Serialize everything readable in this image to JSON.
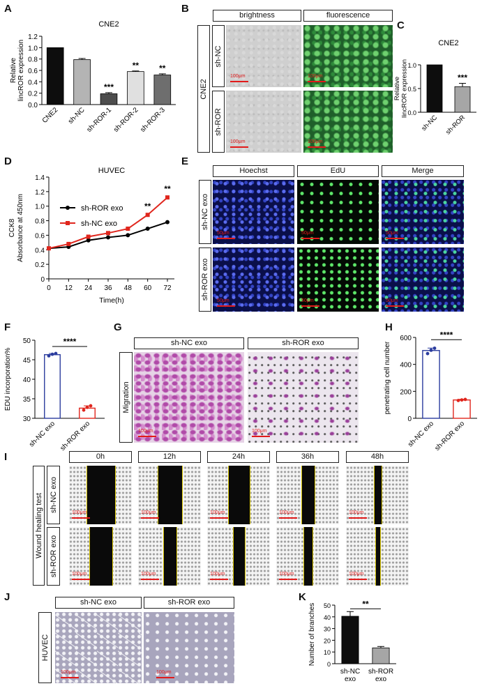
{
  "panels": {
    "A": "A",
    "B": "B",
    "C": "C",
    "D": "D",
    "E": "E",
    "F": "F",
    "G": "G",
    "H": "H",
    "I": "I",
    "J": "J",
    "K": "K"
  },
  "panelB": {
    "headers": [
      "brightness",
      "fluorescence"
    ],
    "group": "CNE2",
    "rows": [
      "sh-NC",
      "sh-ROR"
    ],
    "scale": "100μm"
  },
  "panelE": {
    "headers": [
      "Hoechst",
      "EdU",
      "Merge"
    ],
    "rows": [
      "sh-NC exo",
      "sh-ROR exo"
    ],
    "scale": "50μm"
  },
  "panelG": {
    "headers": [
      "sh-NC exo",
      "sh-ROR exo"
    ],
    "row": "Migration",
    "scale": "100μm"
  },
  "panelI": {
    "headers": [
      "0h",
      "12h",
      "24h",
      "36h",
      "48h"
    ],
    "group": "Wound healing test",
    "rows": [
      "sh-NC exo",
      "sh-ROR exo"
    ],
    "scale": "100μm"
  },
  "panelJ": {
    "headers": [
      "sh-NC exo",
      "sh-ROR exo"
    ],
    "row": "HUVEC",
    "scale": "100μm"
  },
  "chart_data": [
    {
      "id": "A",
      "type": "bar",
      "title": "CNE2",
      "ylabel": "Relative lincROR expression",
      "categories": [
        "CNE2",
        "sh-NC",
        "sh-ROR-1",
        "sh-ROR-2",
        "sh-ROR-3"
      ],
      "values": [
        1.0,
        0.79,
        0.19,
        0.58,
        0.52
      ],
      "errors": [
        0,
        0.02,
        0.02,
        0.01,
        0.02
      ],
      "significance": [
        "",
        "",
        "***",
        "**",
        "**"
      ],
      "colors": [
        "#0d0d0d",
        "#b4b4b4",
        "#4d4d4d",
        "#e0e0e0",
        "#6e6e6e"
      ],
      "ylim": [
        0,
        1.2
      ],
      "yticks": [
        "0.0",
        "0.2",
        "0.4",
        "0.6",
        "0.8",
        "1.0",
        "1.2"
      ]
    },
    {
      "id": "C",
      "type": "bar",
      "title": "CNE2",
      "ylabel": "Relative lincROR expression",
      "categories": [
        "sh-NC",
        "sh-ROR"
      ],
      "values": [
        1.0,
        0.54
      ],
      "errors": [
        0,
        0.07
      ],
      "significance": [
        "",
        "***"
      ],
      "colors": [
        "#0d0d0d",
        "#a6a6a6"
      ],
      "ylim": [
        0,
        1.0
      ],
      "yticks": [
        "0.0",
        "0.5",
        "1.0"
      ]
    },
    {
      "id": "D",
      "type": "line",
      "title": "HUVEC",
      "ylabel": "CCK8 Absorbance at 450nm",
      "xlabel": "Time(h)",
      "x": [
        0,
        12,
        24,
        36,
        48,
        60,
        72
      ],
      "xticks": [
        "0",
        "12",
        "24",
        "36",
        "48",
        "60",
        "72"
      ],
      "series": [
        {
          "name": "sh-ROR exo",
          "color": "#000000",
          "values": [
            0.42,
            0.44,
            0.53,
            0.57,
            0.6,
            0.69,
            0.78
          ]
        },
        {
          "name": "sh-NC exo",
          "color": "#e0261d",
          "values": [
            0.42,
            0.48,
            0.58,
            0.63,
            0.69,
            0.88,
            1.12
          ]
        }
      ],
      "annotations": [
        {
          "x": 60,
          "text": "**"
        },
        {
          "x": 72,
          "text": "**"
        }
      ],
      "ylim": [
        0,
        1.4
      ],
      "yticks": [
        "0",
        "0.2",
        "0.4",
        "0.6",
        "0.8",
        "1.0",
        "1.2",
        "1.4"
      ],
      "legend": "top-left"
    },
    {
      "id": "F",
      "type": "bar",
      "ylabel": "EDU incorporation%",
      "categories": [
        "sh-NC exo",
        "sh-ROR exo"
      ],
      "values": [
        46.3,
        32.6
      ],
      "errors": [
        0.3,
        0.6
      ],
      "points": [
        [
          46.0,
          46.4,
          46.6
        ],
        [
          32.1,
          32.8,
          33.2
        ]
      ],
      "colors": [
        "#2b3c9e",
        "#e0261d"
      ],
      "significance_bracket": "****",
      "ylim": [
        30,
        50
      ],
      "yticks": [
        "30",
        "35",
        "40",
        "45",
        "50"
      ]
    },
    {
      "id": "H",
      "type": "bar",
      "ylabel": "penetrating cell number",
      "categories": [
        "sh-NC exo",
        "sh-ROR exo"
      ],
      "values": [
        503,
        136
      ],
      "errors": [
        18,
        5
      ],
      "points": [
        [
          480,
          505,
          520
        ],
        [
          132,
          136,
          140
        ]
      ],
      "colors": [
        "#2b3c9e",
        "#e0261d"
      ],
      "significance_bracket": "****",
      "ylim": [
        0,
        600
      ],
      "yticks": [
        "0",
        "200",
        "400",
        "600"
      ]
    },
    {
      "id": "K",
      "type": "bar",
      "ylabel": "Number of branches",
      "categories": [
        "sh-NC exo",
        "sh-ROR exo"
      ],
      "values": [
        40.5,
        13.5
      ],
      "errors": [
        4,
        1.2
      ],
      "colors": [
        "#0d0d0d",
        "#a6a6a6"
      ],
      "significance_bracket": "**",
      "ylim": [
        0,
        50
      ],
      "yticks": [
        "0",
        "10",
        "20",
        "30",
        "40",
        "50"
      ]
    }
  ]
}
